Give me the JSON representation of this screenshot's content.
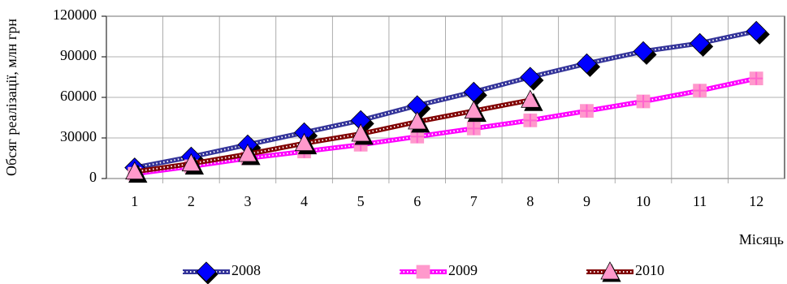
{
  "chart_data": {
    "type": "line",
    "y_label": "Обсяг реалізації, млн грн",
    "x_label": "Місяць",
    "categories": [
      "1",
      "2",
      "3",
      "4",
      "5",
      "6",
      "7",
      "8",
      "9",
      "10",
      "11",
      "12"
    ],
    "series": [
      {
        "name": "2008",
        "color": "#333399",
        "marker_color": "#0000ff",
        "marker": "diamond",
        "values": [
          8000,
          16000,
          25000,
          34000,
          43000,
          54000,
          64000,
          75000,
          85000,
          94000,
          100000,
          109000
        ]
      },
      {
        "name": "2009",
        "color": "#ff00ff",
        "marker_color": "#ff99cc",
        "marker": "plus-square",
        "values": [
          3500,
          9000,
          15000,
          20000,
          25000,
          31000,
          37000,
          43000,
          50000,
          57000,
          65000,
          74000
        ]
      },
      {
        "name": "2010",
        "color": "#800000",
        "marker_color": "#ff99cc",
        "marker": "triangle",
        "values": [
          5000,
          11000,
          18000,
          26000,
          33000,
          42000,
          50000,
          58000,
          null,
          null,
          null,
          null
        ]
      }
    ],
    "ylim": [
      0,
      120000
    ],
    "yticks": [
      0,
      30000,
      60000,
      90000,
      120000
    ],
    "grid": true
  }
}
